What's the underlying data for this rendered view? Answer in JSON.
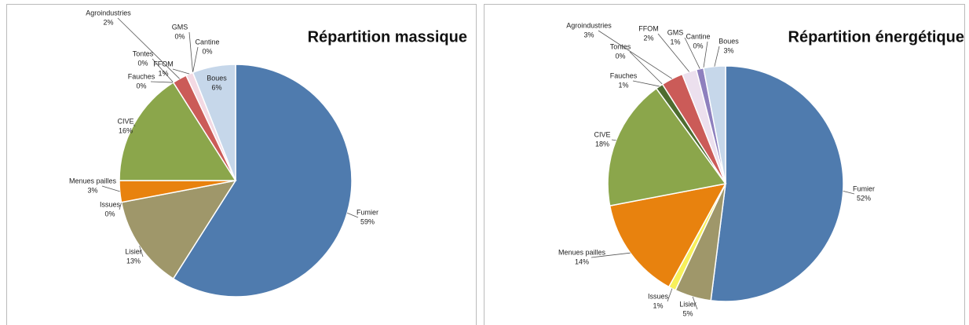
{
  "chart_data": [
    {
      "type": "pie",
      "title": "Répartition massique",
      "categories": [
        "Fumier",
        "Lisier",
        "Issues",
        "Menues pailles",
        "CIVE",
        "Fauches",
        "Tontes",
        "Agroindustries",
        "FFOM",
        "GMS",
        "Cantine",
        "Boues"
      ],
      "values": [
        59,
        13,
        0,
        3,
        16,
        0,
        0,
        2,
        1,
        0,
        0,
        6
      ],
      "value_labels": [
        "59%",
        "13%",
        "0%",
        "3%",
        "16%",
        "0%",
        "0%",
        "2%",
        "1%",
        "0%",
        "0%",
        "6%"
      ],
      "colors": [
        "#4f7bae",
        "#9f976a",
        "#f4f1c8",
        "#e8820e",
        "#8ba64b",
        "#4e6c2f",
        "#7f7f7f",
        "#cb5b58",
        "#f3d9e3",
        "#8e80be",
        "#e6def0",
        "#c6d7ea"
      ]
    },
    {
      "type": "pie",
      "title": "Répartition énergétique",
      "categories": [
        "Fumier",
        "Lisier",
        "Issues",
        "Menues pailles",
        "CIVE",
        "Fauches",
        "Tontes",
        "Agroindustries",
        "FFOM",
        "GMS",
        "Cantine",
        "Boues"
      ],
      "values": [
        52,
        5,
        1,
        14,
        18,
        1,
        0,
        3,
        2,
        1,
        0,
        3
      ],
      "value_labels": [
        "52%",
        "5%",
        "1%",
        "14%",
        "18%",
        "1%",
        "0%",
        "3%",
        "2%",
        "1%",
        "0%",
        "3%"
      ],
      "colors": [
        "#4f7bae",
        "#9f976a",
        "#f7f05a",
        "#e8820e",
        "#8ba64b",
        "#4e6c2f",
        "#7f7f7f",
        "#cb5b58",
        "#ece0ee",
        "#8e80be",
        "#e6def0",
        "#c6d7ea"
      ]
    }
  ]
}
